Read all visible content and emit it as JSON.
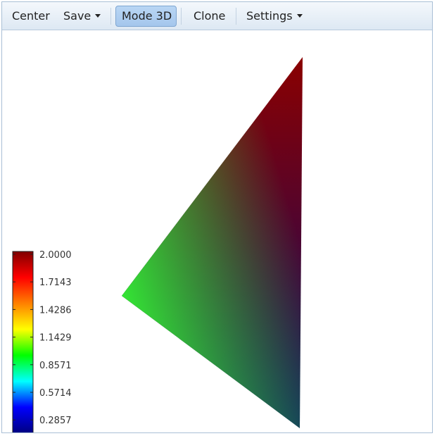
{
  "toolbar": {
    "center_label": "Center",
    "save_label": "Save",
    "mode3d_label": "Mode 3D",
    "clone_label": "Clone",
    "settings_label": "Settings"
  },
  "colorbar": {
    "ticks": [
      "2.0000",
      "1.7143",
      "1.4286",
      "1.1429",
      "0.8571",
      "0.5714",
      "0.2857"
    ],
    "colors": [
      "#000080",
      "#0000ff",
      "#00ffff",
      "#00ff00",
      "#ffff00",
      "#ff8000",
      "#ff0000",
      "#800000"
    ]
  },
  "triangle": {
    "vertex_colors": [
      "#8b0000",
      "#34e434",
      "#0a0a66"
    ]
  }
}
